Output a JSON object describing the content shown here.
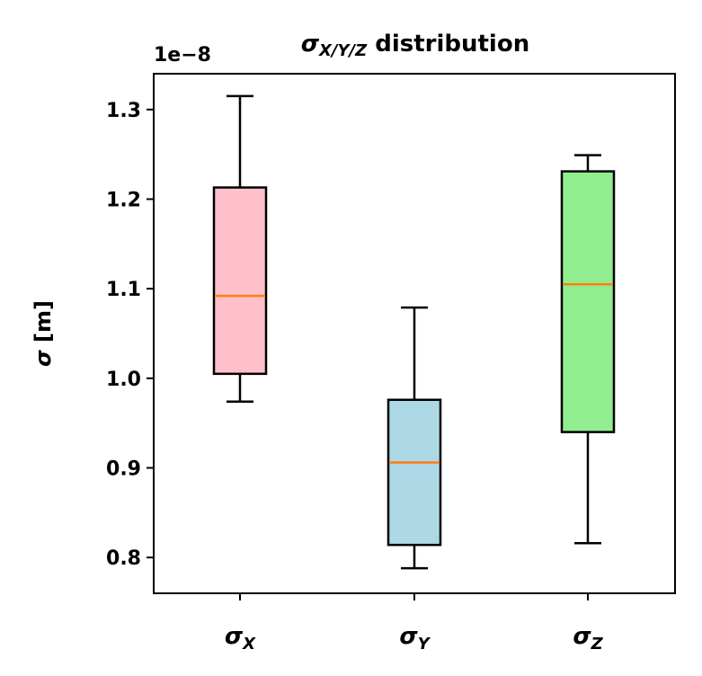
{
  "chart_data": {
    "type": "box",
    "title": {
      "sym": "σ",
      "sub": "X/Y/Z",
      "text": " distribution"
    },
    "offset_text": "1e−8",
    "ylabel": {
      "sym": "σ",
      "text": " [m]"
    },
    "ylim": [
      0.76,
      1.34
    ],
    "yticks": [
      0.8,
      0.9,
      1.0,
      1.1,
      1.2,
      1.3
    ],
    "ytick_labels": [
      "0.8",
      "0.9",
      "1.0",
      "1.1",
      "1.2",
      "1.3"
    ],
    "categories": [
      {
        "sym": "σ",
        "sub": "X"
      },
      {
        "sym": "σ",
        "sub": "Y"
      },
      {
        "sym": "σ",
        "sub": "Z"
      }
    ],
    "boxes": [
      {
        "whislo": 0.974,
        "q1": 1.005,
        "med": 1.092,
        "q3": 1.213,
        "whishi": 1.315,
        "color": "#ffc0cb"
      },
      {
        "whislo": 0.788,
        "q1": 0.814,
        "med": 0.906,
        "q3": 0.976,
        "whishi": 1.079,
        "color": "#add8e6"
      },
      {
        "whislo": 0.816,
        "q1": 0.94,
        "med": 1.105,
        "q3": 1.231,
        "whishi": 1.249,
        "color": "#90ee90"
      }
    ],
    "median_color": "#ff7f0e",
    "grid": false,
    "legend": false
  }
}
